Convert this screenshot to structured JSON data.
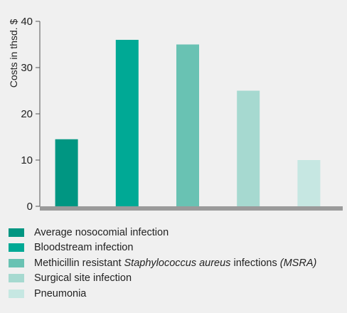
{
  "chart_data": {
    "type": "bar",
    "title": "",
    "xlabel": "",
    "ylabel": "Costs in thsd. $",
    "ylim": [
      0,
      40
    ],
    "yticks": [
      0,
      10,
      20,
      30,
      40
    ],
    "grid": false,
    "legend_position": "bottom",
    "categories": [
      "Average nosocomial infection",
      "Bloodstream infection",
      "Methicillin resistant Staphylococcus aureus infections (MSRA)",
      "Surgical site infection",
      "Pneumonia"
    ],
    "values": [
      14.5,
      36,
      35,
      25,
      10
    ],
    "colors": [
      "#009682",
      "#00a995",
      "#69c2b3",
      "#a6d9d0",
      "#c6e7e2"
    ],
    "legend": [
      {
        "parts": [
          {
            "text": "Average nosocomial infection",
            "italic": false
          }
        ]
      },
      {
        "parts": [
          {
            "text": "Bloodstream infection",
            "italic": false
          }
        ]
      },
      {
        "parts": [
          {
            "text": "Methicillin resistant ",
            "italic": false
          },
          {
            "text": "Staphylococcus aureus",
            "italic": true
          },
          {
            "text": " infections ",
            "italic": false
          },
          {
            "text": "(MSRA)",
            "italic": true
          }
        ]
      },
      {
        "parts": [
          {
            "text": "Surgical site infection",
            "italic": false
          }
        ]
      },
      {
        "parts": [
          {
            "text": "Pneumonia",
            "italic": false
          }
        ]
      }
    ],
    "axis_color": "#9a9a9a"
  }
}
